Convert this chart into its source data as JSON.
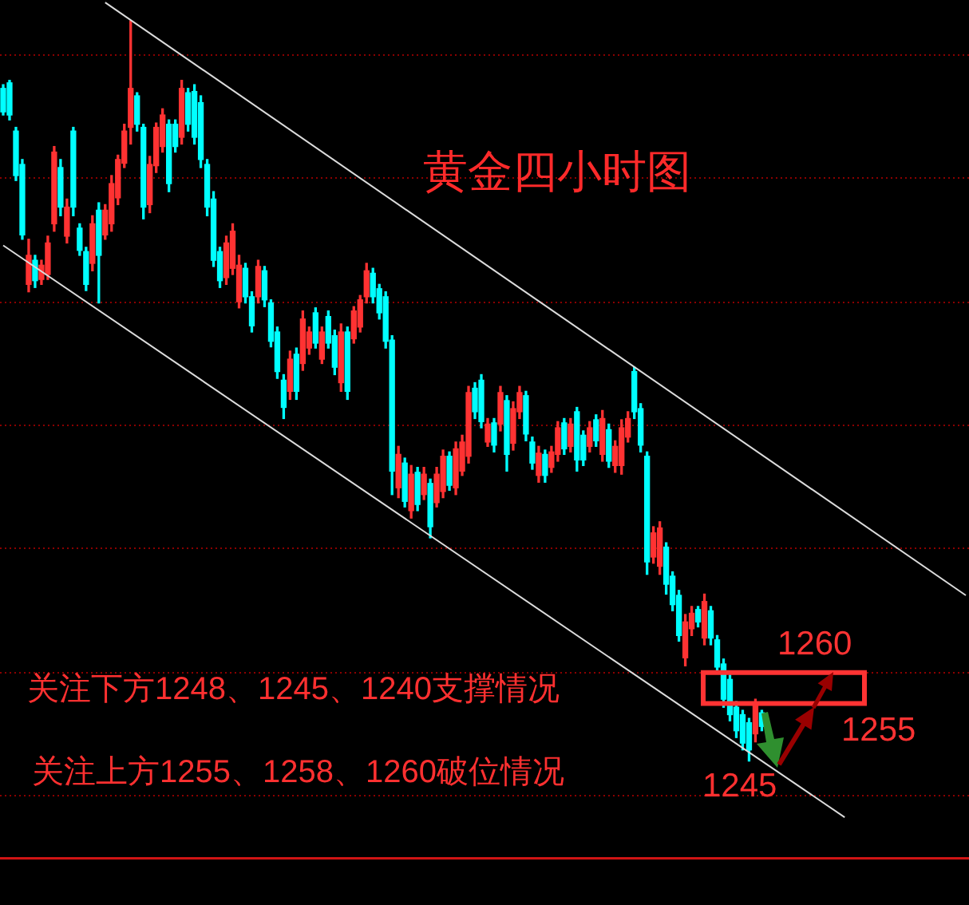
{
  "chart_data": {
    "type": "candlestick",
    "title": "黄金四小时图",
    "annotations": [
      "关注下方1248、1245、1240支撑情况",
      "关注上方1255、1258、1260破位情况",
      "1245"
    ],
    "ref_lines": [
      {
        "axis": "y",
        "value": 1260,
        "label": "1260",
        "color": "#ff3333"
      },
      {
        "axis": "y",
        "value": 1255,
        "label": "1255",
        "color": "#ff3333"
      }
    ],
    "ylim": [
      1229.9,
      1368.8
    ],
    "yticks": [
      {
        "value": 1240,
        "label": null
      },
      {
        "value": 1260,
        "label": null
      },
      {
        "value": 1280,
        "label": null
      },
      {
        "value": 1300,
        "label": null
      },
      {
        "value": 1320,
        "label": null
      },
      {
        "value": 1340,
        "label": null
      },
      {
        "value": 1360,
        "label": null
      }
    ],
    "grid": "y",
    "tick_labels": false,
    "categories": [
      null,
      null,
      null,
      null,
      null,
      null,
      null,
      null,
      null,
      null,
      null,
      null,
      null,
      null,
      null,
      null,
      null,
      null,
      null,
      null,
      null,
      null,
      null,
      null,
      null,
      null,
      null,
      null,
      null,
      null,
      null,
      null,
      null,
      null,
      null,
      null,
      null,
      null,
      null,
      null,
      null,
      null,
      null,
      null,
      null,
      null,
      null,
      null,
      null,
      null,
      null,
      null,
      null,
      null,
      null,
      null,
      null,
      null,
      null,
      null,
      null,
      null,
      null,
      null,
      null,
      null,
      null,
      null,
      null,
      null,
      null,
      null,
      null,
      null,
      null,
      null,
      null,
      null,
      null,
      null,
      null,
      null,
      null,
      null,
      null,
      null,
      null,
      null,
      null,
      null,
      null,
      null,
      null,
      null,
      null,
      null,
      null,
      null,
      null,
      null,
      null,
      null,
      null,
      null,
      null,
      null,
      null,
      null,
      null,
      null,
      null,
      null,
      null,
      null,
      null,
      null,
      null,
      null,
      null,
      null,
      null,
      null,
      null,
      null,
      null,
      null,
      null,
      null,
      null,
      null,
      null,
      null,
      null,
      null,
      null,
      null,
      null,
      null,
      null,
      null,
      null,
      null,
      null,
      null,
      null,
      null,
      null,
      null,
      null,
      null,
      null,
      null
    ],
    "ohlc": [
      [
        1354.5,
        1355.1,
        1350.2,
        1350.7
      ],
      [
        1355.4,
        1355.8,
        1349.4,
        1350.2
      ],
      [
        1347.6,
        1348.2,
        1339.6,
        1340.4
      ],
      [
        1342.2,
        1343.0,
        1330.1,
        1330.8
      ],
      [
        1322.8,
        1330.1,
        1321.6,
        1327.5
      ],
      [
        1326.7,
        1327.5,
        1322.3,
        1323.4
      ],
      [
        1323.6,
        1326.7,
        1322.8,
        1325.9
      ],
      [
        1324.4,
        1330.6,
        1323.6,
        1329.5
      ],
      [
        1332.6,
        1345.1,
        1331.4,
        1344.2
      ],
      [
        1341.7,
        1343.0,
        1333.9,
        1335.3
      ],
      [
        1330.6,
        1336.6,
        1329.5,
        1335.3
      ],
      [
        1347.6,
        1348.2,
        1333.9,
        1335.3
      ],
      [
        1331.9,
        1332.6,
        1327.5,
        1328.3
      ],
      [
        1328.1,
        1328.8,
        1321.8,
        1322.8
      ],
      [
        1326.2,
        1333.9,
        1325.0,
        1332.6
      ],
      [
        1334.8,
        1336.0,
        1319.8,
        1327.5
      ],
      [
        1330.8,
        1335.7,
        1330.1,
        1334.8
      ],
      [
        1332.6,
        1340.4,
        1331.4,
        1339.1
      ],
      [
        1336.8,
        1343.7,
        1335.7,
        1343.0
      ],
      [
        1342.4,
        1348.7,
        1341.7,
        1347.6
      ],
      [
        1348.2,
        1365.4,
        1345.5,
        1354.5
      ],
      [
        1353.3,
        1353.8,
        1347.6,
        1348.7
      ],
      [
        1348.2,
        1348.7,
        1333.4,
        1335.3
      ],
      [
        1335.7,
        1343.5,
        1334.4,
        1342.2
      ],
      [
        1342.0,
        1348.9,
        1340.9,
        1348.2
      ],
      [
        1345.1,
        1351.2,
        1344.2,
        1350.2
      ],
      [
        1348.7,
        1349.4,
        1337.8,
        1339.1
      ],
      [
        1348.7,
        1349.4,
        1344.2,
        1345.1
      ],
      [
        1346.6,
        1355.8,
        1345.5,
        1354.5
      ],
      [
        1353.8,
        1354.5,
        1347.6,
        1348.7
      ],
      [
        1354.0,
        1355.1,
        1345.5,
        1346.6
      ],
      [
        1352.2,
        1353.3,
        1341.7,
        1343.0
      ],
      [
        1342.2,
        1343.0,
        1333.9,
        1335.3
      ],
      [
        1336.6,
        1337.8,
        1325.7,
        1326.7
      ],
      [
        1328.1,
        1328.8,
        1322.3,
        1323.4
      ],
      [
        1323.9,
        1330.6,
        1322.8,
        1329.5
      ],
      [
        1325.4,
        1332.6,
        1324.4,
        1331.4
      ],
      [
        1320.0,
        1327.5,
        1319.0,
        1325.9
      ],
      [
        1325.4,
        1326.2,
        1319.8,
        1320.8
      ],
      [
        1320.8,
        1321.6,
        1315.1,
        1316.1
      ],
      [
        1320.8,
        1326.7,
        1319.8,
        1325.7
      ],
      [
        1325.0,
        1325.7,
        1319.2,
        1320.3
      ],
      [
        1319.8,
        1320.3,
        1312.7,
        1313.6
      ],
      [
        1315.1,
        1315.9,
        1307.6,
        1308.7
      ],
      [
        1307.3,
        1308.2,
        1301.1,
        1302.9
      ],
      [
        1305.5,
        1312.0,
        1304.2,
        1310.7
      ],
      [
        1311.5,
        1312.5,
        1304.2,
        1305.5
      ],
      [
        1310.0,
        1318.5,
        1308.9,
        1317.2
      ],
      [
        1312.5,
        1315.9,
        1311.5,
        1315.1
      ],
      [
        1318.2,
        1319.0,
        1312.5,
        1313.3
      ],
      [
        1310.7,
        1315.9,
        1310.0,
        1315.1
      ],
      [
        1317.6,
        1318.5,
        1312.5,
        1313.3
      ],
      [
        1314.5,
        1315.4,
        1308.2,
        1309.4
      ],
      [
        1306.9,
        1316.4,
        1305.5,
        1315.1
      ],
      [
        1315.1,
        1315.9,
        1304.2,
        1305.5
      ],
      [
        1314.0,
        1319.2,
        1313.3,
        1318.5
      ],
      [
        1315.9,
        1321.0,
        1315.1,
        1320.3
      ],
      [
        1320.8,
        1326.2,
        1319.8,
        1325.0
      ],
      [
        1324.6,
        1325.4,
        1319.8,
        1320.8
      ],
      [
        1322.1,
        1322.8,
        1317.2,
        1318.2
      ],
      [
        1320.8,
        1321.6,
        1312.5,
        1313.6
      ],
      [
        1313.8,
        1314.5,
        1288.8,
        1292.6
      ],
      [
        1289.9,
        1296.6,
        1288.3,
        1295.3
      ],
      [
        1293.9,
        1294.7,
        1286.8,
        1287.7
      ],
      [
        1286.2,
        1293.5,
        1285.0,
        1292.1
      ],
      [
        1292.4,
        1293.2,
        1286.2,
        1287.2
      ],
      [
        1288.8,
        1293.2,
        1288.0,
        1292.1
      ],
      [
        1290.6,
        1291.3,
        1281.8,
        1283.6
      ],
      [
        1287.5,
        1293.2,
        1286.8,
        1292.1
      ],
      [
        1289.3,
        1296.0,
        1288.3,
        1295.0
      ],
      [
        1295.0,
        1295.7,
        1289.5,
        1290.3
      ],
      [
        1289.9,
        1297.3,
        1288.8,
        1296.2
      ],
      [
        1292.6,
        1298.4,
        1291.9,
        1297.3
      ],
      [
        1295.0,
        1306.3,
        1293.9,
        1305.3
      ],
      [
        1306.0,
        1306.9,
        1301.1,
        1302.2
      ],
      [
        1307.3,
        1308.2,
        1299.6,
        1300.6
      ],
      [
        1297.3,
        1301.1,
        1296.6,
        1300.2
      ],
      [
        1300.4,
        1301.1,
        1295.7,
        1296.8
      ],
      [
        1300.2,
        1306.3,
        1299.1,
        1305.3
      ],
      [
        1304.0,
        1304.8,
        1292.6,
        1295.3
      ],
      [
        1297.1,
        1303.8,
        1296.0,
        1302.7
      ],
      [
        1302.2,
        1306.3,
        1301.1,
        1305.3
      ],
      [
        1304.8,
        1305.5,
        1297.5,
        1298.6
      ],
      [
        1297.3,
        1298.1,
        1292.9,
        1293.9
      ],
      [
        1291.9,
        1296.6,
        1290.8,
        1295.5
      ],
      [
        1295.3,
        1296.0,
        1290.8,
        1291.9
      ],
      [
        1293.2,
        1296.6,
        1292.4,
        1295.7
      ],
      [
        1295.3,
        1300.6,
        1294.2,
        1299.6
      ],
      [
        1300.4,
        1301.1,
        1295.3,
        1296.2
      ],
      [
        1296.6,
        1301.1,
        1295.7,
        1300.2
      ],
      [
        1302.2,
        1302.9,
        1292.6,
        1294.4
      ],
      [
        1298.4,
        1299.1,
        1293.5,
        1294.4
      ],
      [
        1296.6,
        1300.6,
        1295.7,
        1299.6
      ],
      [
        1300.9,
        1301.7,
        1296.6,
        1297.5
      ],
      [
        1295.3,
        1302.4,
        1294.2,
        1301.1
      ],
      [
        1299.3,
        1300.2,
        1293.2,
        1294.2
      ],
      [
        1293.5,
        1297.5,
        1292.4,
        1296.6
      ],
      [
        1293.5,
        1300.9,
        1292.1,
        1299.6
      ],
      [
        1298.1,
        1302.2,
        1297.3,
        1301.1
      ],
      [
        1308.7,
        1309.4,
        1301.1,
        1302.2
      ],
      [
        1302.7,
        1303.5,
        1295.7,
        1296.8
      ],
      [
        1295.0,
        1295.7,
        1275.9,
        1277.9
      ],
      [
        1278.7,
        1283.6,
        1277.7,
        1282.6
      ],
      [
        1277.2,
        1284.4,
        1275.9,
        1283.4
      ],
      [
        1280.3,
        1281.0,
        1272.7,
        1274.3
      ],
      [
        1275.6,
        1276.3,
        1270.0,
        1271.0
      ],
      [
        1272.5,
        1273.3,
        1265.1,
        1266.0
      ],
      [
        1262.4,
        1269.4,
        1261.1,
        1268.2
      ],
      [
        1267.1,
        1270.7,
        1266.0,
        1269.6
      ],
      [
        1270.2,
        1270.7,
        1267.4,
        1268.2
      ],
      [
        1265.6,
        1272.7,
        1264.5,
        1271.5
      ],
      [
        1270.0,
        1270.7,
        1264.5,
        1265.6
      ],
      [
        1265.3,
        1266.0,
        1259.9,
        1260.9
      ],
      [
        1261.4,
        1262.2,
        1254.4,
        1255.7
      ],
      [
        1258.9,
        1259.6,
        1252.2,
        1253.2
      ],
      [
        1254.4,
        1255.3,
        1249.5,
        1250.6
      ],
      [
        1253.2,
        1253.9,
        1247.5,
        1248.6
      ],
      [
        1251.9,
        1252.6,
        1245.7,
        1247.5
      ],
      [
        1250.1,
        1255.7,
        1248.8,
        1254.7
      ],
      [
        1253.5,
        1253.9,
        1250.6,
        1251.3
      ],
      null,
      null,
      null,
      null,
      null,
      null,
      null,
      null,
      null,
      null,
      null,
      null,
      null,
      null,
      null,
      null,
      null,
      null,
      null,
      null,
      null,
      null,
      null,
      null,
      null,
      null,
      null,
      null,
      null,
      null,
      null,
      null
    ],
    "colors": [
      "#00ffff",
      "#00ffff",
      "#00ffff",
      "#00ffff",
      "#ff3232",
      "#00ffff",
      "#ff3232",
      "#ff3232",
      "#ff3232",
      "#00ffff",
      "#ff3232",
      "#00ffff",
      "#00ffff",
      "#00ffff",
      "#ff3232",
      "#00ffff",
      "#ff3232",
      "#ff3232",
      "#ff3232",
      "#ff3232",
      "#ff3232",
      "#00ffff",
      "#00ffff",
      "#ff3232",
      "#ff3232",
      "#ff3232",
      "#00ffff",
      "#00ffff",
      "#ff3232",
      "#00ffff",
      "#00ffff",
      "#00ffff",
      "#00ffff",
      "#00ffff",
      "#00ffff",
      "#ff3232",
      "#ff3232",
      "#ff3232",
      "#00ffff",
      "#00ffff",
      "#ff3232",
      "#00ffff",
      "#00ffff",
      "#00ffff",
      "#00ffff",
      "#ff3232",
      "#00ffff",
      "#ff3232",
      "#ff3232",
      "#00ffff",
      "#ff3232",
      "#00ffff",
      "#00ffff",
      "#ff3232",
      "#00ffff",
      "#ff3232",
      "#ff3232",
      "#ff3232",
      "#00ffff",
      "#00ffff",
      "#00ffff",
      "#00ffff",
      "#ff3232",
      "#00ffff",
      "#ff3232",
      "#00ffff",
      "#ff3232",
      "#00ffff",
      "#ff3232",
      "#ff3232",
      "#00ffff",
      "#ff3232",
      "#ff3232",
      "#ff3232",
      "#00ffff",
      "#00ffff",
      "#ff3232",
      "#00ffff",
      "#ff3232",
      "#00ffff",
      "#ff3232",
      "#ff3232",
      "#00ffff",
      "#00ffff",
      "#ff3232",
      "#00ffff",
      "#ff3232",
      "#ff3232",
      "#00ffff",
      "#ff3232",
      "#00ffff",
      "#00ffff",
      "#ff3232",
      "#00ffff",
      "#ff3232",
      "#00ffff",
      "#ff3232",
      "#ff3232",
      "#ff3232",
      "#00ffff",
      "#00ffff",
      "#00ffff",
      "#ff3232",
      "#ff3232",
      "#00ffff",
      "#00ffff",
      "#00ffff",
      "#ff3232",
      "#ff3232",
      "#00ffff",
      "#ff3232",
      "#00ffff",
      "#00ffff",
      "#00ffff",
      "#00ffff",
      "#00ffff",
      "#00ffff",
      "#00ffff",
      "#ff3232",
      "#00ffff",
      null,
      null,
      null,
      null,
      null,
      null,
      null,
      null,
      null,
      null,
      null,
      null,
      null,
      null,
      null,
      null,
      null,
      null,
      null,
      null,
      null,
      null,
      null,
      null,
      null,
      null,
      null,
      null,
      null,
      null,
      null,
      null
    ],
    "series": [
      {
        "type": "line",
        "color": "#dcdcdc",
        "values": [
          null,
          null,
          null,
          null,
          null,
          null,
          null,
          null,
          null,
          null,
          null,
          null,
          null,
          null,
          null,
          null,
          1368.4,
          null,
          null,
          null,
          null,
          null,
          null,
          null,
          null,
          null,
          null,
          null,
          null,
          null,
          null,
          null,
          null,
          null,
          null,
          null,
          null,
          null,
          null,
          null,
          null,
          null,
          null,
          null,
          null,
          null,
          null,
          null,
          null,
          null,
          null,
          null,
          null,
          null,
          null,
          null,
          null,
          null,
          null,
          null,
          null,
          null,
          null,
          null,
          null,
          null,
          null,
          null,
          null,
          null,
          null,
          null,
          null,
          null,
          null,
          null,
          null,
          null,
          null,
          null,
          null,
          null,
          null,
          null,
          null,
          null,
          null,
          null,
          null,
          null,
          null,
          null,
          null,
          null,
          null,
          null,
          null,
          null,
          null,
          null,
          null,
          null,
          null,
          null,
          null,
          null,
          null,
          null,
          null,
          null,
          null,
          null,
          null,
          null,
          null,
          null,
          null,
          null,
          null,
          null,
          null,
          null,
          null,
          null,
          null,
          null,
          null,
          null,
          null,
          null,
          null,
          null,
          null,
          null,
          null,
          null,
          null,
          null,
          null,
          null,
          null,
          null,
          null,
          null,
          null,
          null,
          null,
          null,
          null,
          null,
          null,
          1272.5
        ]
      },
      {
        "type": "line",
        "color": "#dcdcdc",
        "values": [
          1329.1,
          null,
          null,
          null,
          null,
          null,
          null,
          null,
          null,
          null,
          null,
          null,
          null,
          null,
          null,
          null,
          null,
          null,
          null,
          null,
          null,
          null,
          null,
          null,
          null,
          null,
          null,
          null,
          null,
          null,
          null,
          null,
          null,
          null,
          null,
          null,
          null,
          null,
          null,
          null,
          null,
          null,
          null,
          null,
          null,
          null,
          null,
          null,
          null,
          null,
          null,
          null,
          null,
          null,
          null,
          null,
          null,
          null,
          null,
          null,
          null,
          null,
          null,
          null,
          null,
          null,
          null,
          null,
          null,
          null,
          null,
          null,
          null,
          null,
          null,
          null,
          null,
          null,
          null,
          null,
          null,
          null,
          null,
          null,
          null,
          null,
          null,
          null,
          null,
          null,
          null,
          null,
          null,
          null,
          null,
          null,
          null,
          null,
          null,
          null,
          null,
          null,
          null,
          null,
          null,
          null,
          null,
          null,
          null,
          null,
          null,
          null,
          null,
          null,
          null,
          null,
          null,
          null,
          null,
          null,
          null,
          null,
          null,
          null,
          null,
          null,
          null,
          null,
          null,
          null,
          null,
          null,
          1236.6,
          null,
          null,
          null,
          null,
          null,
          null,
          null,
          null,
          null,
          null,
          null,
          null,
          null,
          null,
          null,
          null,
          null,
          null,
          null
        ]
      }
    ]
  }
}
